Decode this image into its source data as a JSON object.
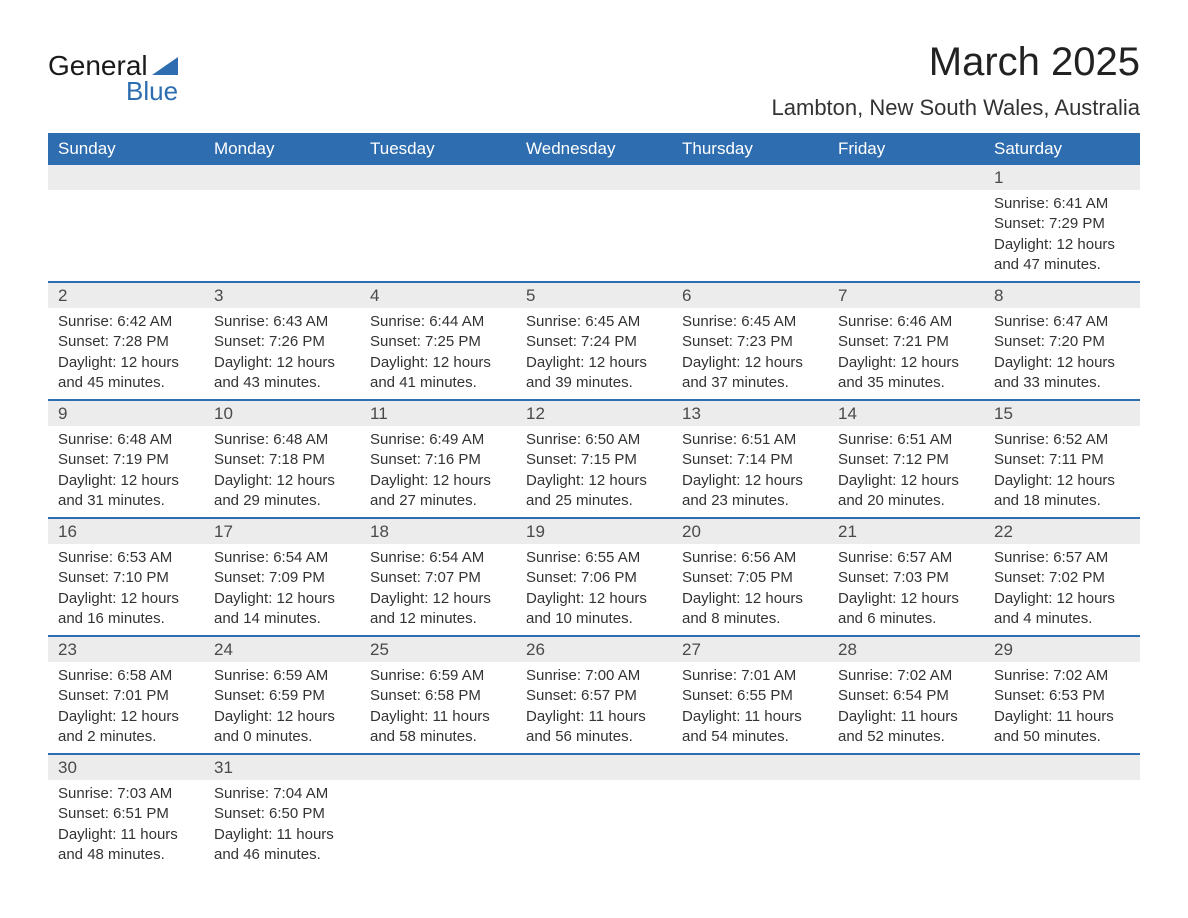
{
  "logo": {
    "line1": "General",
    "line2": "Blue",
    "accent_color": "#2d6db0"
  },
  "title": "March 2025",
  "location": "Lambton, New South Wales, Australia",
  "columns": [
    "Sunday",
    "Monday",
    "Tuesday",
    "Wednesday",
    "Thursday",
    "Friday",
    "Saturday"
  ],
  "header_bg": "#2d6db0",
  "header_fg": "#ffffff",
  "daynum_bg": "#ececec",
  "divider_color": "#2d6db0",
  "text_color": "#333333",
  "font_size_body": 15,
  "font_size_header": 17,
  "font_size_title": 40,
  "font_size_location": 22,
  "weeks": [
    {
      "nums": [
        "",
        "",
        "",
        "",
        "",
        "",
        "1"
      ],
      "cells": [
        null,
        null,
        null,
        null,
        null,
        null,
        {
          "sunrise": "6:41 AM",
          "sunset": "7:29 PM",
          "daylight": "12 hours and 47 minutes."
        }
      ]
    },
    {
      "nums": [
        "2",
        "3",
        "4",
        "5",
        "6",
        "7",
        "8"
      ],
      "cells": [
        {
          "sunrise": "6:42 AM",
          "sunset": "7:28 PM",
          "daylight": "12 hours and 45 minutes."
        },
        {
          "sunrise": "6:43 AM",
          "sunset": "7:26 PM",
          "daylight": "12 hours and 43 minutes."
        },
        {
          "sunrise": "6:44 AM",
          "sunset": "7:25 PM",
          "daylight": "12 hours and 41 minutes."
        },
        {
          "sunrise": "6:45 AM",
          "sunset": "7:24 PM",
          "daylight": "12 hours and 39 minutes."
        },
        {
          "sunrise": "6:45 AM",
          "sunset": "7:23 PM",
          "daylight": "12 hours and 37 minutes."
        },
        {
          "sunrise": "6:46 AM",
          "sunset": "7:21 PM",
          "daylight": "12 hours and 35 minutes."
        },
        {
          "sunrise": "6:47 AM",
          "sunset": "7:20 PM",
          "daylight": "12 hours and 33 minutes."
        }
      ]
    },
    {
      "nums": [
        "9",
        "10",
        "11",
        "12",
        "13",
        "14",
        "15"
      ],
      "cells": [
        {
          "sunrise": "6:48 AM",
          "sunset": "7:19 PM",
          "daylight": "12 hours and 31 minutes."
        },
        {
          "sunrise": "6:48 AM",
          "sunset": "7:18 PM",
          "daylight": "12 hours and 29 minutes."
        },
        {
          "sunrise": "6:49 AM",
          "sunset": "7:16 PM",
          "daylight": "12 hours and 27 minutes."
        },
        {
          "sunrise": "6:50 AM",
          "sunset": "7:15 PM",
          "daylight": "12 hours and 25 minutes."
        },
        {
          "sunrise": "6:51 AM",
          "sunset": "7:14 PM",
          "daylight": "12 hours and 23 minutes."
        },
        {
          "sunrise": "6:51 AM",
          "sunset": "7:12 PM",
          "daylight": "12 hours and 20 minutes."
        },
        {
          "sunrise": "6:52 AM",
          "sunset": "7:11 PM",
          "daylight": "12 hours and 18 minutes."
        }
      ]
    },
    {
      "nums": [
        "16",
        "17",
        "18",
        "19",
        "20",
        "21",
        "22"
      ],
      "cells": [
        {
          "sunrise": "6:53 AM",
          "sunset": "7:10 PM",
          "daylight": "12 hours and 16 minutes."
        },
        {
          "sunrise": "6:54 AM",
          "sunset": "7:09 PM",
          "daylight": "12 hours and 14 minutes."
        },
        {
          "sunrise": "6:54 AM",
          "sunset": "7:07 PM",
          "daylight": "12 hours and 12 minutes."
        },
        {
          "sunrise": "6:55 AM",
          "sunset": "7:06 PM",
          "daylight": "12 hours and 10 minutes."
        },
        {
          "sunrise": "6:56 AM",
          "sunset": "7:05 PM",
          "daylight": "12 hours and 8 minutes."
        },
        {
          "sunrise": "6:57 AM",
          "sunset": "7:03 PM",
          "daylight": "12 hours and 6 minutes."
        },
        {
          "sunrise": "6:57 AM",
          "sunset": "7:02 PM",
          "daylight": "12 hours and 4 minutes."
        }
      ]
    },
    {
      "nums": [
        "23",
        "24",
        "25",
        "26",
        "27",
        "28",
        "29"
      ],
      "cells": [
        {
          "sunrise": "6:58 AM",
          "sunset": "7:01 PM",
          "daylight": "12 hours and 2 minutes."
        },
        {
          "sunrise": "6:59 AM",
          "sunset": "6:59 PM",
          "daylight": "12 hours and 0 minutes."
        },
        {
          "sunrise": "6:59 AM",
          "sunset": "6:58 PM",
          "daylight": "11 hours and 58 minutes."
        },
        {
          "sunrise": "7:00 AM",
          "sunset": "6:57 PM",
          "daylight": "11 hours and 56 minutes."
        },
        {
          "sunrise": "7:01 AM",
          "sunset": "6:55 PM",
          "daylight": "11 hours and 54 minutes."
        },
        {
          "sunrise": "7:02 AM",
          "sunset": "6:54 PM",
          "daylight": "11 hours and 52 minutes."
        },
        {
          "sunrise": "7:02 AM",
          "sunset": "6:53 PM",
          "daylight": "11 hours and 50 minutes."
        }
      ]
    },
    {
      "nums": [
        "30",
        "31",
        "",
        "",
        "",
        "",
        ""
      ],
      "cells": [
        {
          "sunrise": "7:03 AM",
          "sunset": "6:51 PM",
          "daylight": "11 hours and 48 minutes."
        },
        {
          "sunrise": "7:04 AM",
          "sunset": "6:50 PM",
          "daylight": "11 hours and 46 minutes."
        },
        null,
        null,
        null,
        null,
        null
      ]
    }
  ],
  "labels": {
    "sunrise": "Sunrise:",
    "sunset": "Sunset:",
    "daylight": "Daylight:"
  }
}
